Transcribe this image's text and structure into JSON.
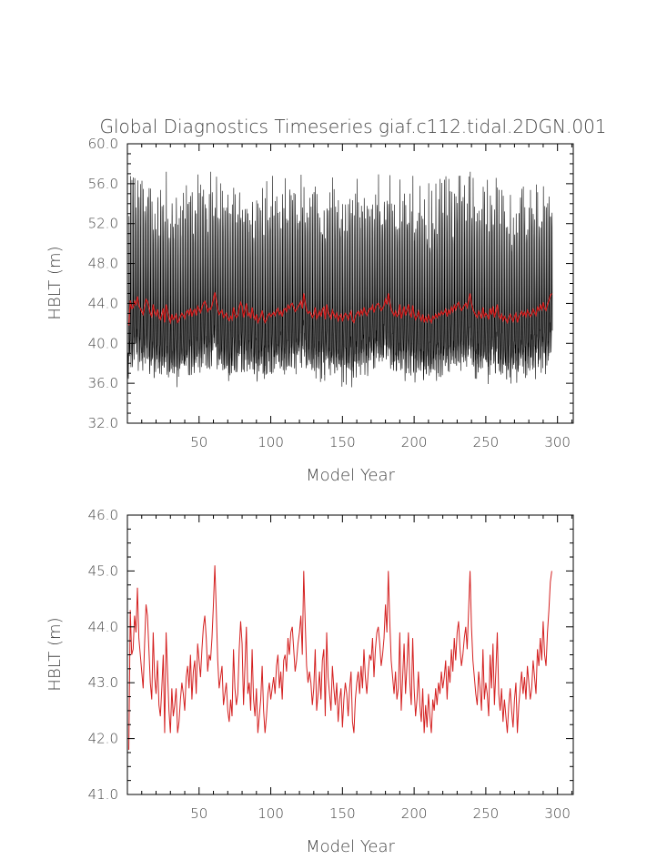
{
  "chart_data": [
    {
      "type": "line",
      "title": "Global Diagnostics Timeseries giaf.c112.tidal.2DGN.001",
      "xlabel": "Model Year",
      "ylabel": "HBLT (m)",
      "xlim": [
        0,
        311
      ],
      "ylim": [
        32.0,
        60.0
      ],
      "xticks": [
        50,
        100,
        150,
        200,
        250,
        300
      ],
      "xtick_labels": [
        "50",
        "100",
        "150",
        "200",
        "250",
        "300"
      ],
      "yticks": [
        32.0,
        36.0,
        40.0,
        44.0,
        48.0,
        52.0,
        56.0,
        60.0
      ],
      "ytick_labels": [
        "32.0",
        "36.0",
        "40.0",
        "44.0",
        "48.0",
        "52.0",
        "56.0",
        "60.0"
      ],
      "series": [
        {
          "kind": "monthly",
          "color": "#000000",
          "approx_range": [
            34.3,
            57.2
          ],
          "note_values_per_year": 12
        },
        {
          "kind": "annual",
          "color": "#d42020",
          "values_ref": "annual"
        }
      ]
    },
    {
      "type": "line",
      "title": "",
      "xlabel": "Model Year",
      "ylabel": "HBLT (m)",
      "xlim": [
        0,
        311
      ],
      "ylim": [
        41.0,
        46.0
      ],
      "xticks": [
        50,
        100,
        150,
        200,
        250,
        300
      ],
      "xtick_labels": [
        "50",
        "100",
        "150",
        "200",
        "250",
        "300"
      ],
      "yticks": [
        41.0,
        42.0,
        43.0,
        44.0,
        45.0,
        46.0
      ],
      "ytick_labels": [
        "41.0",
        "42.0",
        "43.0",
        "44.0",
        "45.0",
        "46.0"
      ],
      "series": [
        {
          "kind": "annual",
          "color": "#d42020",
          "values_ref": "annual"
        }
      ]
    }
  ],
  "annual": [
    41.8,
    44.3,
    43.5,
    43.6,
    44.2,
    43.9,
    44.7,
    43.8,
    43.5,
    43.2,
    42.9,
    43.7,
    44.4,
    44.2,
    43.6,
    43.0,
    42.7,
    43.9,
    43.1,
    42.8,
    43.4,
    42.6,
    42.4,
    42.9,
    43.5,
    42.1,
    43.9,
    43.2,
    42.5,
    42.1,
    42.9,
    42.4,
    42.6,
    42.9,
    42.1,
    42.3,
    42.7,
    43.0,
    42.8,
    42.5,
    43.1,
    43.3,
    42.9,
    43.5,
    42.7,
    43.2,
    43.4,
    42.8,
    43.7,
    43.4,
    43.1,
    43.6,
    44.0,
    44.2,
    43.8,
    43.2,
    43.5,
    43.4,
    43.8,
    44.4,
    45.1,
    44.3,
    43.4,
    42.9,
    43.1,
    43.3,
    42.6,
    42.8,
    43.0,
    42.5,
    42.3,
    42.7,
    42.4,
    43.6,
    42.9,
    42.6,
    42.8,
    43.6,
    44.1,
    43.7,
    42.6,
    43.3,
    44.0,
    42.8,
    43.0,
    42.5,
    43.6,
    42.7,
    42.4,
    42.9,
    42.1,
    42.4,
    42.7,
    43.3,
    42.5,
    42.1,
    42.4,
    42.8,
    43.0,
    42.7,
    42.9,
    43.1,
    42.8,
    43.3,
    43.5,
    42.9,
    43.2,
    42.7,
    43.4,
    43.5,
    43.2,
    43.8,
    43.5,
    43.9,
    44.0,
    43.6,
    43.2,
    43.4,
    43.7,
    43.9,
    44.2,
    43.5,
    45.0,
    44.1,
    43.3,
    43.0,
    43.2,
    43.0,
    42.6,
    42.9,
    43.6,
    42.5,
    42.8,
    43.2,
    42.7,
    43.4,
    43.6,
    42.4,
    43.9,
    43.1,
    42.8,
    42.5,
    43.3,
    42.9,
    42.6,
    43.0,
    42.3,
    42.7,
    42.9,
    42.2,
    42.7,
    43.0,
    42.8,
    42.4,
    42.9,
    43.2,
    42.3,
    42.1,
    42.7,
    43.0,
    43.2,
    42.8,
    43.3,
    42.9,
    43.6,
    43.1,
    42.8,
    43.2,
    43.5,
    43.4,
    43.8,
    43.1,
    43.6,
    43.9,
    44.0,
    43.7,
    43.3,
    43.5,
    43.8,
    44.4,
    43.9,
    45.0,
    44.1,
    43.4,
    43.1,
    42.8,
    43.2,
    42.7,
    42.9,
    43.9,
    42.5,
    43.1,
    43.7,
    42.8,
    43.3,
    43.9,
    43.0,
    42.6,
    43.8,
    42.9,
    42.4,
    42.7,
    43.2,
    42.6,
    42.3,
    42.9,
    42.1,
    42.6,
    42.2,
    42.8,
    42.4,
    42.1,
    42.7,
    42.5,
    42.9,
    42.6,
    43.0,
    42.8,
    43.2,
    42.9,
    43.1,
    43.4,
    42.7,
    43.3,
    43.0,
    43.6,
    43.2,
    43.8,
    43.4,
    43.9,
    44.1,
    43.6,
    43.3,
    43.5,
    43.8,
    44.0,
    43.6,
    44.3,
    45.0,
    44.0,
    43.4,
    43.1,
    42.8,
    42.6,
    43.2,
    42.9,
    42.5,
    43.6,
    42.7,
    43.0,
    42.8,
    42.4,
    43.5,
    42.9,
    43.7,
    42.6,
    43.2,
    43.9,
    42.8,
    42.5,
    42.9,
    42.3,
    42.7,
    42.4,
    42.1,
    42.6,
    42.9,
    42.5,
    42.2,
    42.7,
    43.0,
    42.1,
    42.6,
    42.9,
    43.2,
    42.8,
    43.1,
    42.7,
    43.3,
    43.0,
    42.7,
    42.9,
    43.4,
    43.1,
    42.8,
    43.6,
    43.3,
    43.8,
    43.4,
    44.1,
    43.5,
    43.3,
    43.9,
    44.3,
    44.8,
    45.0
  ]
}
